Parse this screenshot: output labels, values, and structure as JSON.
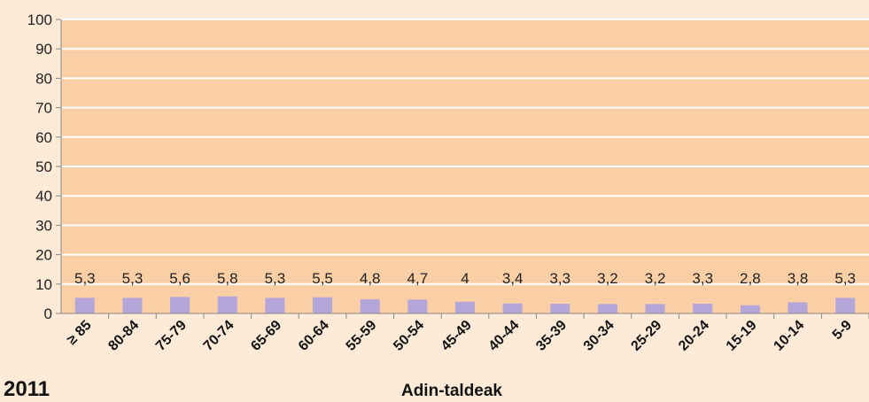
{
  "chart_data": {
    "type": "bar",
    "categories": [
      "≥ 85",
      "80-84",
      "75-79",
      "70-74",
      "65-69",
      "60-64",
      "55-59",
      "50-54",
      "45-49",
      "40-44",
      "35-39",
      "30-34",
      "25-29",
      "20-24",
      "15-19",
      "10-14",
      "5-9"
    ],
    "values": [
      5.3,
      5.3,
      5.6,
      5.8,
      5.3,
      5.5,
      4.8,
      4.7,
      4,
      3.4,
      3.3,
      3.2,
      3.2,
      3.3,
      2.8,
      3.8,
      5.3
    ],
    "data_labels": [
      "5,3",
      "5,3",
      "5,6",
      "5,8",
      "5,3",
      "5,5",
      "4,8",
      "4,7",
      "4",
      "3,4",
      "3,3",
      "3,2",
      "3,2",
      "3,3",
      "2,8",
      "3,8",
      "5,3"
    ],
    "yticks": [
      "0",
      "10",
      "20",
      "30",
      "40",
      "50",
      "60",
      "70",
      "80",
      "90",
      "100"
    ],
    "ylim": [
      0,
      100
    ],
    "xlabel": "Adin-taldeak",
    "ylabel": "",
    "grid": true,
    "colors": {
      "plot_bg": "#fbcfa6",
      "bar": "#b4a6d8",
      "grid": "#ffffff",
      "page_bg": "#fdebd7"
    }
  },
  "year_label": "2011"
}
